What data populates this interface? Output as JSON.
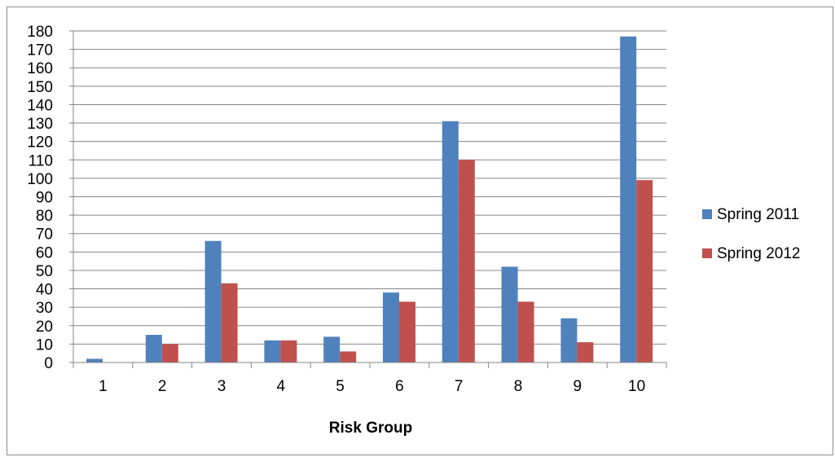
{
  "chart_data": {
    "type": "bar",
    "title": "",
    "xlabel": "Risk Group",
    "ylabel": "",
    "categories": [
      "1",
      "2",
      "3",
      "4",
      "5",
      "6",
      "7",
      "8",
      "9",
      "10"
    ],
    "series": [
      {
        "name": "Spring 2011",
        "color": "#4f81bd",
        "values": [
          2,
          15,
          66,
          12,
          14,
          38,
          131,
          52,
          24,
          177
        ]
      },
      {
        "name": "Spring 2012",
        "color": "#c0504d",
        "values": [
          0,
          10,
          43,
          12,
          6,
          33,
          110,
          33,
          11,
          99
        ]
      }
    ],
    "ylim": [
      0,
      180
    ],
    "ytick_step": 10,
    "yticks": [
      "0",
      "10",
      "20",
      "30",
      "40",
      "50",
      "60",
      "70",
      "80",
      "90",
      "100",
      "110",
      "120",
      "130",
      "140",
      "150",
      "160",
      "170",
      "180"
    ],
    "grid": true,
    "legend_position": "right"
  }
}
